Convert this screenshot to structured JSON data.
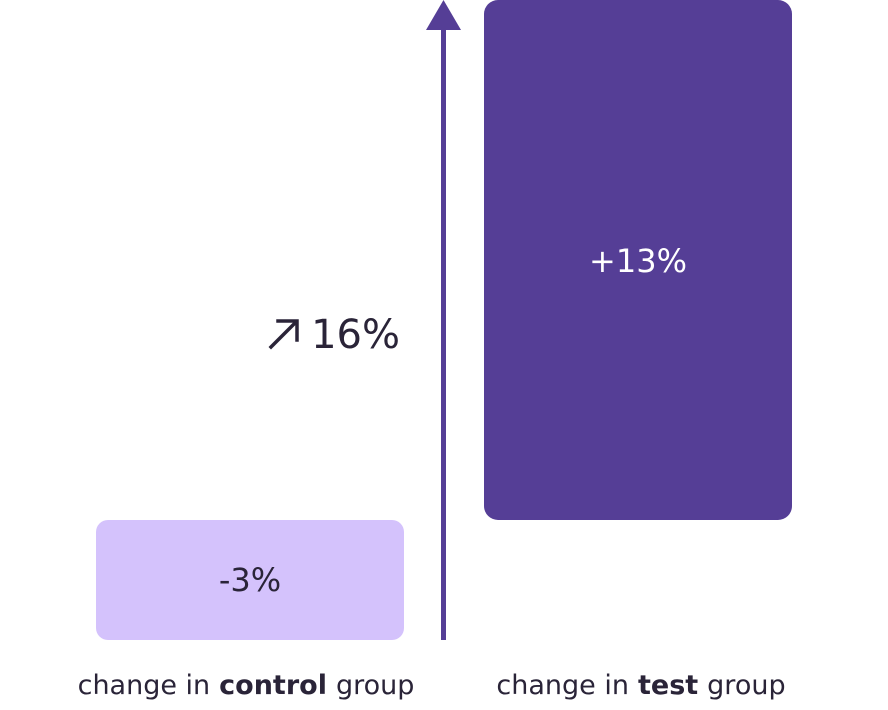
{
  "bars": [
    {
      "label": "-3%",
      "caption": {
        "prefix": "change in",
        "group": "control",
        "suffix": "group"
      }
    },
    {
      "label": "+13%",
      "caption": {
        "prefix": "change in",
        "group": "test",
        "suffix": "group"
      }
    }
  ],
  "difference": "16%"
}
